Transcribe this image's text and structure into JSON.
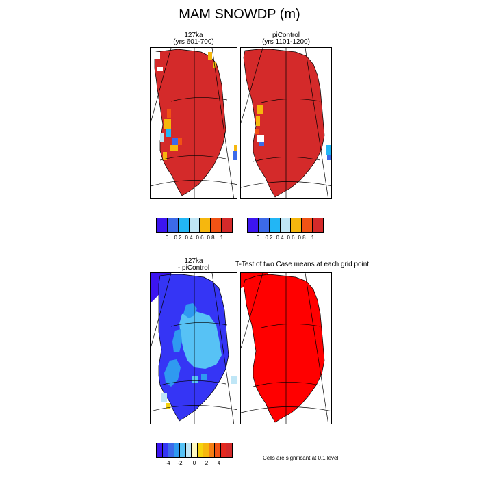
{
  "title": "MAM SNOWDP (m)",
  "top_left": {
    "line1": "127ka",
    "line2": "(yrs 601-700)"
  },
  "top_right": {
    "line1": "piControl",
    "line2": "(yrs 1101-1200)"
  },
  "bottom_left": {
    "line1": "127ka",
    "line2": "- piControl"
  },
  "bottom_right": {
    "label": "T-Test of two Case means at each grid point"
  },
  "colorbar_top": {
    "colors": [
      "#3c15f0",
      "#3c6ae9",
      "#22b6f5",
      "#bfe6f6",
      "#f6b70e",
      "#f15315",
      "#d42a2a"
    ],
    "ticks": [
      "0",
      "0.2",
      "0.4",
      "0.6",
      "0.8",
      "1"
    ]
  },
  "colorbar_bottom": {
    "colors": [
      "#3c15f0",
      "#3535f5",
      "#3c6ae9",
      "#2f9af0",
      "#57c2f5",
      "#bfe6f6",
      "#fffac0",
      "#f6d40e",
      "#f6b70e",
      "#f57e14",
      "#f15315",
      "#e42a20",
      "#d42a2a"
    ],
    "ticks": [
      "-4",
      "-2",
      "0",
      "2",
      "4"
    ]
  },
  "footnote": "Cells are significant at 0.1 level",
  "colors": {
    "land_high": "#d42a2a",
    "ttest_red": "#ff0000",
    "diff_dark": "#3c15f0",
    "diff_mid": "#57c2f5"
  }
}
